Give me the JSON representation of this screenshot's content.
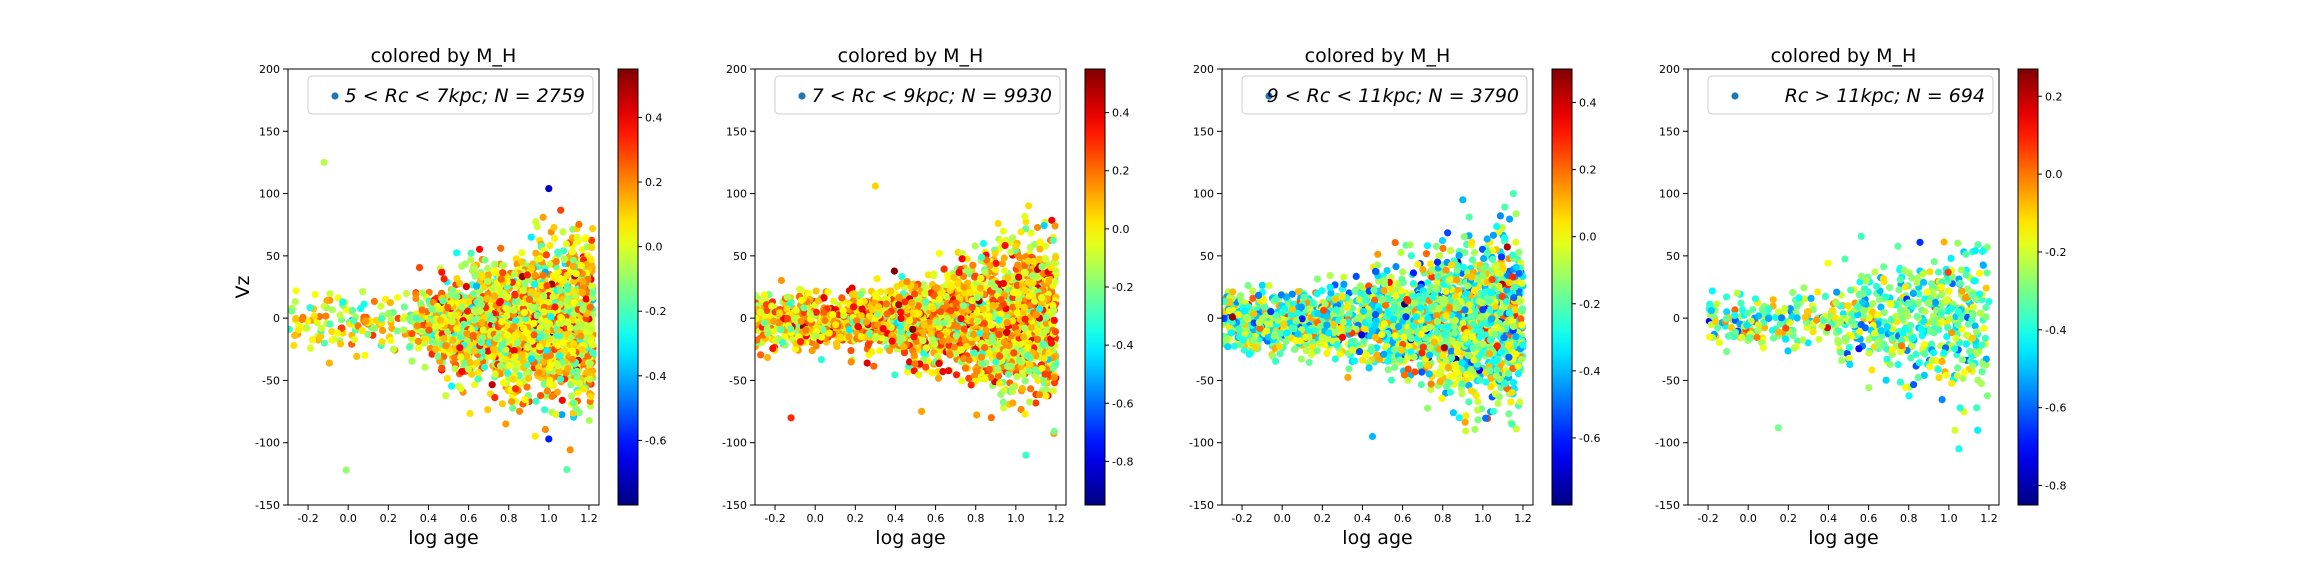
{
  "chart_data": [
    {
      "type": "scatter",
      "title": "colored by M_H",
      "xlabel": "log age",
      "ylabel": "Vz",
      "xlim": [
        -0.3,
        1.25
      ],
      "ylim": [
        -150,
        200
      ],
      "xticks": [
        "-0.2",
        "0.0",
        "0.2",
        "0.4",
        "0.6",
        "0.8",
        "1.0",
        "1.2"
      ],
      "yticks": [
        "200",
        "150",
        "100",
        "50",
        "0",
        "-50",
        "-100",
        "-150"
      ],
      "legend": {
        "label": "5 < Rc < 7kpc;  N = 2759",
        "marker_color": "#1f77b4",
        "position": "upper-right"
      },
      "colorbar": {
        "label": "",
        "min": -0.8,
        "max": 0.55,
        "ticks": [
          "0.4",
          "0.2",
          "0.0",
          "-0.2",
          "-0.4",
          "-0.6"
        ],
        "tick_values": [
          0.4,
          0.2,
          0.0,
          -0.2,
          -0.4,
          -0.6
        ]
      },
      "colormap": "jet",
      "grid": false,
      "series": [
        {
          "N": 2759,
          "x_dist": {
            "groups": [
              {
                "x_range": [
                  -0.3,
                  0.25
                ],
                "weight": 0.05
              },
              {
                "x_range": [
                  0.25,
                  1.22
                ],
                "weight": 0.95,
                "skew": 0.75
              }
            ]
          },
          "vz_dist": {
            "center": -5,
            "sd": 25,
            "min": -125,
            "max": 128
          },
          "color_dist": {
            "center": 0.05,
            "sd": 0.17
          },
          "outliers": [
            {
              "x": -0.12,
              "y": 125,
              "c": -0.05
            },
            {
              "x": -0.01,
              "y": -122,
              "c": -0.1
            },
            {
              "x": 1.0,
              "y": 104,
              "c": -0.7
            },
            {
              "x": 1.0,
              "y": -97,
              "c": -0.6
            }
          ]
        }
      ]
    },
    {
      "type": "scatter",
      "title": "colored by M_H",
      "xlabel": "log age",
      "ylabel": "",
      "xlim": [
        -0.3,
        1.25
      ],
      "ylim": [
        -150,
        200
      ],
      "xticks": [
        "-0.2",
        "0.0",
        "0.2",
        "0.4",
        "0.6",
        "0.8",
        "1.0",
        "1.2"
      ],
      "yticks": [
        "200",
        "150",
        "100",
        "50",
        "0",
        "-50",
        "-100",
        "-150"
      ],
      "legend": {
        "label": "7 < Rc < 9kpc;  N = 9930",
        "marker_color": "#1f77b4",
        "position": "upper-right"
      },
      "colorbar": {
        "label": "",
        "min": -0.95,
        "max": 0.55,
        "ticks": [
          "0.4",
          "0.2",
          "0.0",
          "-0.2",
          "-0.4",
          "-0.6",
          "-0.8"
        ],
        "tick_values": [
          0.4,
          0.2,
          0.0,
          -0.2,
          -0.4,
          -0.6,
          -0.8
        ]
      },
      "colormap": "jet",
      "grid": false,
      "series": [
        {
          "N": 9930,
          "x_dist": {
            "groups": [
              {
                "x_range": [
                  -0.3,
                  0.5
                ],
                "weight": 0.35
              },
              {
                "x_range": [
                  0.4,
                  1.2
                ],
                "weight": 0.65,
                "skew": 0.6
              }
            ]
          },
          "vz_dist": {
            "center": -2,
            "sd": 24,
            "min": -112,
            "max": 112
          },
          "color_dist": {
            "center": 0.05,
            "sd": 0.18
          },
          "outliers": [
            {
              "x": 0.3,
              "y": 106,
              "c": 0.05
            },
            {
              "x": 1.05,
              "y": -110,
              "c": -0.3
            },
            {
              "x": -0.12,
              "y": -80,
              "c": 0.3
            }
          ]
        }
      ]
    },
    {
      "type": "scatter",
      "title": "colored by M_H",
      "xlabel": "log age",
      "ylabel": "",
      "xlim": [
        -0.3,
        1.25
      ],
      "ylim": [
        -150,
        200
      ],
      "xticks": [
        "-0.2",
        "0.0",
        "0.2",
        "0.4",
        "0.6",
        "0.8",
        "1.0",
        "1.2"
      ],
      "yticks": [
        "200",
        "150",
        "100",
        "50",
        "0",
        "-50",
        "-100",
        "-150"
      ],
      "legend": {
        "label": "9 < Rc < 11kpc;  N = 3790",
        "marker_color": "#1f77b4",
        "position": "upper-right"
      },
      "colorbar": {
        "label": "",
        "min": -0.8,
        "max": 0.5,
        "ticks": [
          "0.4",
          "0.2",
          "0.0",
          "-0.2",
          "-0.4",
          "-0.6"
        ],
        "tick_values": [
          0.4,
          0.2,
          0.0,
          -0.2,
          -0.4,
          -0.6
        ]
      },
      "colormap": "jet",
      "grid": false,
      "series": [
        {
          "N": 3790,
          "x_dist": {
            "groups": [
              {
                "x_range": [
                  -0.3,
                  0.3
                ],
                "weight": 0.3
              },
              {
                "x_range": [
                  0.25,
                  1.2
                ],
                "weight": 0.7,
                "skew": 0.5
              }
            ]
          },
          "vz_dist": {
            "center": -3,
            "sd": 26,
            "min": -100,
            "max": 100
          },
          "color_dist": {
            "center": -0.15,
            "sd": 0.2
          },
          "outliers": [
            {
              "x": 0.45,
              "y": -95,
              "c": -0.4
            },
            {
              "x": 0.9,
              "y": 95,
              "c": -0.4
            }
          ]
        }
      ]
    },
    {
      "type": "scatter",
      "title": "colored by M_H",
      "xlabel": "log age",
      "ylabel": "",
      "xlim": [
        -0.3,
        1.25
      ],
      "ylim": [
        -150,
        200
      ],
      "xticks": [
        "-0.2",
        "0.0",
        "0.2",
        "0.4",
        "0.6",
        "0.8",
        "1.0",
        "1.2"
      ],
      "yticks": [
        "200",
        "150",
        "100",
        "50",
        "0",
        "-50",
        "-100",
        "-150"
      ],
      "legend": {
        "label": "Rc > 11kpc;  N = 694",
        "marker_color": "#1f77b4",
        "position": "upper-right"
      },
      "colorbar": {
        "label": "",
        "min": -0.85,
        "max": 0.27,
        "ticks": [
          "0.2",
          "0.0",
          "-0.2",
          "-0.4",
          "-0.6",
          "-0.8"
        ],
        "tick_values": [
          0.2,
          0.0,
          -0.2,
          -0.4,
          -0.6,
          -0.8
        ]
      },
      "colormap": "jet",
      "grid": false,
      "series": [
        {
          "N": 694,
          "x_dist": {
            "groups": [
              {
                "x_range": [
                  -0.2,
                  0.25
                ],
                "weight": 0.2
              },
              {
                "x_range": [
                  0.25,
                  1.2
                ],
                "weight": 0.8,
                "skew": 0.5
              }
            ]
          },
          "vz_dist": {
            "center": -2,
            "sd": 24,
            "min": -90,
            "max": 70
          },
          "color_dist": {
            "center": -0.3,
            "sd": 0.15
          },
          "outliers": [
            {
              "x": 1.05,
              "y": -105,
              "c": -0.4
            },
            {
              "x": 0.15,
              "y": -88,
              "c": -0.3
            }
          ]
        }
      ]
    }
  ]
}
